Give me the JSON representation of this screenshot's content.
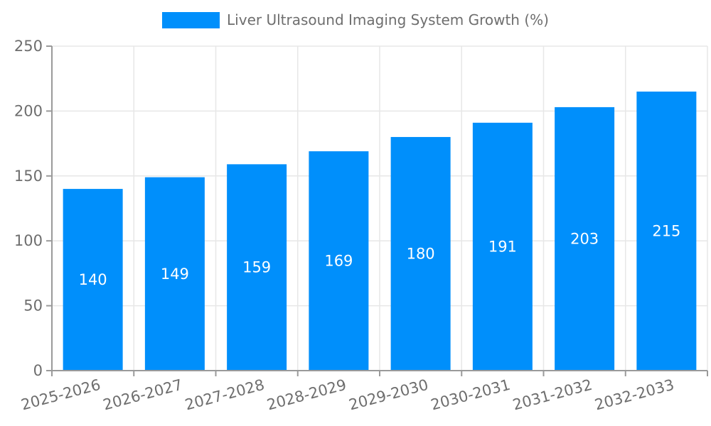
{
  "chart_data": {
    "type": "bar",
    "categories": [
      "2025-2026",
      "2026-2027",
      "2027-2028",
      "2028-2029",
      "2029-2030",
      "2030-2031",
      "2031-2032",
      "2032-2033"
    ],
    "values": [
      140,
      149,
      159,
      169,
      180,
      191,
      203,
      215
    ],
    "title": "Liver Ultrasound Imaging System Growth (%)",
    "xlabel": "",
    "ylabel": "",
    "ylim": [
      0,
      250
    ],
    "yticks": [
      0,
      50,
      100,
      150,
      200,
      250
    ],
    "grid": true,
    "legend_position": "top",
    "bar_color": "#008FFB",
    "value_label_color": "#FFFFFF",
    "axis_text_color": "#6E6E6E",
    "grid_color": "#E7E7E7",
    "axis_line_color": "#9A9A9A"
  },
  "legend": {
    "label": "Liver Ultrasound Imaging System Growth (%)",
    "swatch_color": "#008FFB"
  }
}
